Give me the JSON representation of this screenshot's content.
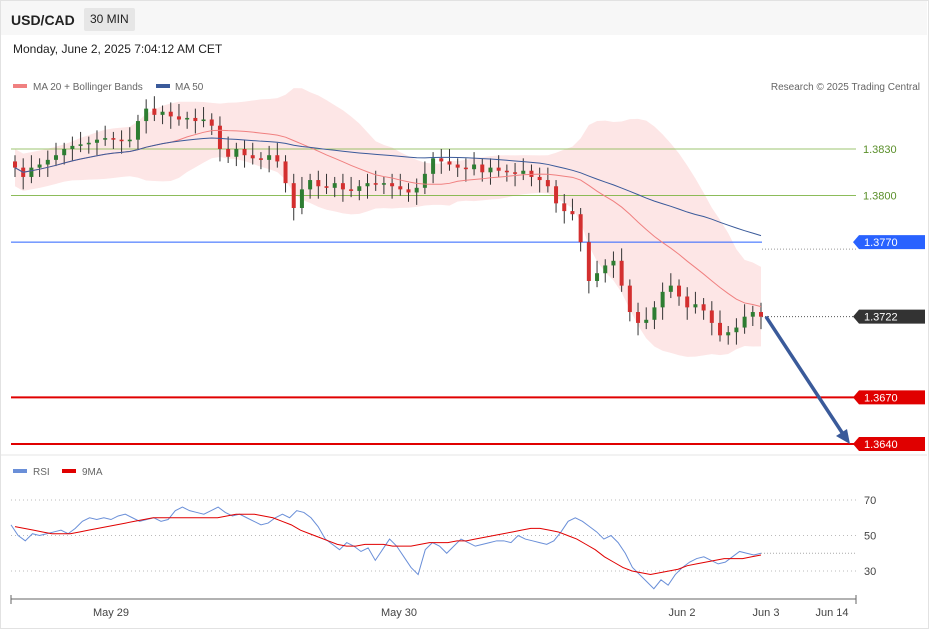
{
  "header": {
    "symbol": "USD/CAD",
    "timeframe": "30 MIN",
    "datetime": "Monday, June 2, 2025 7:04:12 AM CET"
  },
  "legend": {
    "ma_bollinger": "MA 20 + Bollinger Bands",
    "ma50": "MA 50",
    "copyright": "Research © 2025 Trading Central",
    "rsi": "RSI",
    "rsi_ma": "9MA"
  },
  "colors": {
    "bollinger_fill": "#fde3e3",
    "ma20": "#f08080",
    "ma50": "#3a5a9a",
    "up_candle": "#2e7d32",
    "down_candle": "#d32f2f",
    "resistance": "#7cb342",
    "pivot": "#2962ff",
    "support": "#e00000",
    "last_price": "#333333",
    "rsi": "#6a8fd8",
    "rsi_ma": "#e00000",
    "forecast_arrow": "#3a5a9a"
  },
  "chart_data": [
    {
      "type": "candlestick",
      "title": "USD/CAD",
      "timeframe": "30 MIN",
      "x_tick_labels": [
        "May 29",
        "May 30",
        "Jun 2",
        "Jun 3",
        "Jun 14"
      ],
      "ylim": [
        1.3625,
        1.3895
      ],
      "last_price": 1.3722,
      "levels": [
        {
          "value": 1.383,
          "role": "resistance",
          "label": "1.3830"
        },
        {
          "value": 1.38,
          "role": "resistance",
          "label": "1.3800"
        },
        {
          "value": 1.377,
          "role": "pivot",
          "label": "1.3770"
        },
        {
          "value": 1.3722,
          "role": "last",
          "label": "1.3722"
        },
        {
          "value": 1.367,
          "role": "support",
          "label": "1.3670"
        },
        {
          "value": 1.364,
          "role": "support",
          "label": "1.3640"
        }
      ],
      "forecast_arrow": {
        "from": 1.3722,
        "to": 1.364
      },
      "series": [
        {
          "name": "MA 20 + Bollinger Bands"
        },
        {
          "name": "MA 50"
        }
      ],
      "candles_close_approx": [
        1.3818,
        1.3812,
        1.3818,
        1.382,
        1.3823,
        1.3826,
        1.383,
        1.3832,
        1.3833,
        1.3834,
        1.3836,
        1.3837,
        1.3836,
        1.3835,
        1.3836,
        1.3848,
        1.3856,
        1.3852,
        1.3854,
        1.3851,
        1.3849,
        1.385,
        1.3848,
        1.3849,
        1.3845,
        1.383,
        1.3825,
        1.383,
        1.3826,
        1.3824,
        1.3823,
        1.3826,
        1.3822,
        1.3808,
        1.3792,
        1.3804,
        1.381,
        1.3806,
        1.3805,
        1.3808,
        1.3804,
        1.3803,
        1.3806,
        1.3808,
        1.3807,
        1.3808,
        1.3806,
        1.3804,
        1.3802,
        1.3805,
        1.3814,
        1.3824,
        1.3822,
        1.382,
        1.3818,
        1.3817,
        1.382,
        1.3815,
        1.3818,
        1.3816,
        1.3815,
        1.3814,
        1.3816,
        1.3812,
        1.381,
        1.3806,
        1.3795,
        1.379,
        1.3788,
        1.377,
        1.3745,
        1.375,
        1.3755,
        1.3758,
        1.3742,
        1.3725,
        1.3718,
        1.372,
        1.3728,
        1.3738,
        1.3742,
        1.3735,
        1.3728,
        1.373,
        1.3726,
        1.3718,
        1.371,
        1.3712,
        1.3715,
        1.3722,
        1.3725,
        1.3722
      ]
    },
    {
      "type": "line",
      "title": "RSI",
      "ylim": [
        15,
        80
      ],
      "y_ticks": [
        70,
        50,
        30
      ],
      "series": [
        {
          "name": "RSI",
          "values": [
            56,
            50,
            47,
            51,
            50,
            51,
            52,
            53,
            51,
            54,
            58,
            60,
            59,
            60,
            59,
            61,
            62,
            60,
            58,
            59,
            60,
            58,
            59,
            64,
            66,
            64,
            63,
            62,
            64,
            66,
            63,
            61,
            62,
            60,
            58,
            56,
            57,
            60,
            62,
            60,
            64,
            63,
            60,
            55,
            48,
            45,
            42,
            46,
            44,
            41,
            43,
            36,
            42,
            48,
            44,
            38,
            32,
            28,
            42,
            46,
            44,
            40,
            44,
            48,
            46,
            44,
            45,
            46,
            47,
            47,
            46,
            50,
            48,
            47,
            46,
            45,
            47,
            52,
            58,
            60,
            58,
            55,
            52,
            48,
            50,
            46,
            40,
            32,
            28,
            24,
            20,
            25,
            22,
            28,
            32,
            35,
            37,
            38,
            36,
            34,
            35,
            38,
            41,
            40,
            39,
            40
          ]
        },
        {
          "name": "9MA",
          "values": [
            55,
            54,
            53,
            52,
            51,
            51,
            51,
            52,
            53,
            54,
            55,
            56,
            57,
            58,
            59,
            60,
            60,
            60,
            60,
            60,
            60,
            60,
            60,
            61,
            62,
            62,
            62,
            61,
            60,
            58,
            56,
            53,
            51,
            49,
            47,
            45,
            44,
            44,
            45,
            45,
            45,
            44,
            44,
            44,
            45,
            46,
            46,
            46,
            47,
            47,
            48,
            49,
            50,
            51,
            52,
            53,
            54,
            54,
            53,
            52,
            50,
            48,
            45,
            42,
            38,
            35,
            32,
            30,
            29,
            28,
            29,
            30,
            31,
            33,
            34,
            35,
            36,
            37,
            37,
            37,
            38,
            39
          ]
        }
      ]
    }
  ]
}
